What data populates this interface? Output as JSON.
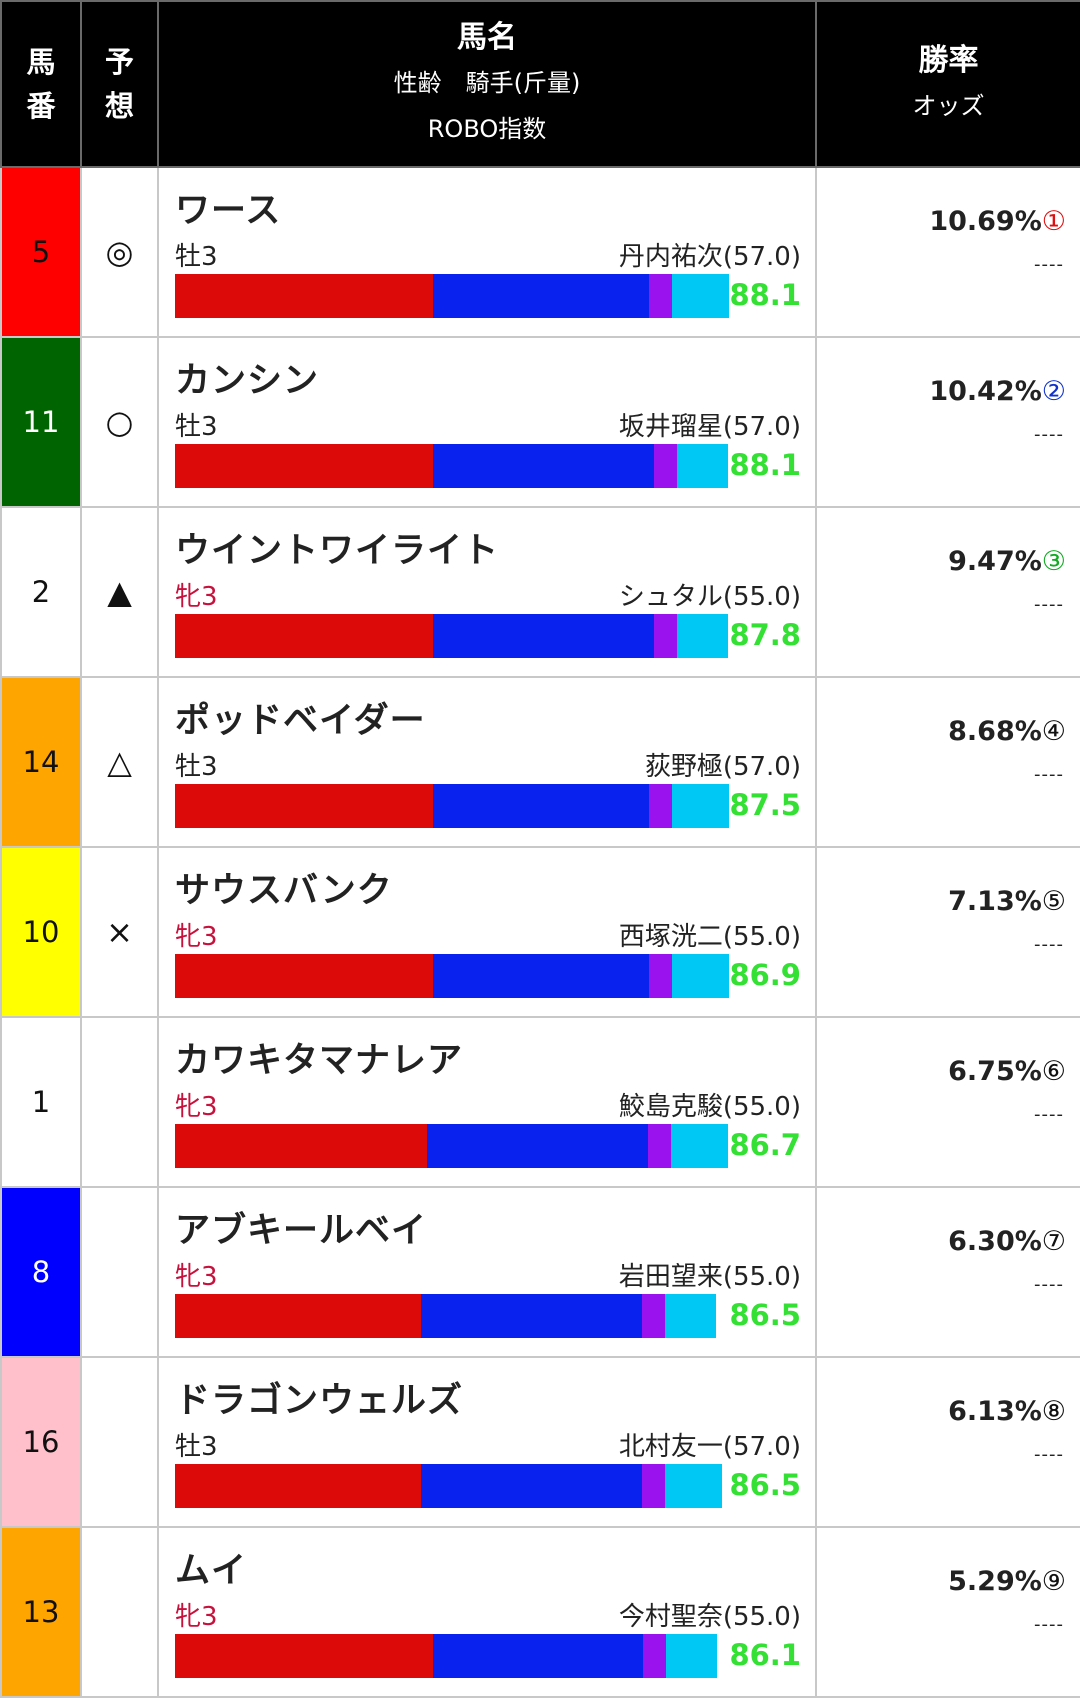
{
  "header": {
    "col_num": [
      "馬",
      "番"
    ],
    "col_pred": [
      "予",
      "想"
    ],
    "col_horse": {
      "name": "馬名",
      "sub1": "性齢　騎手(斤量)",
      "sub2": "ROBO指数"
    },
    "col_odds": {
      "rate": "勝率",
      "odds": "オッズ"
    }
  },
  "colors": {
    "segments": [
      "#dd0a0a",
      "#0a22ee",
      "#9a12ee",
      "#00c8f5"
    ],
    "index_text": "#33e033",
    "female_text": "#c8103c"
  },
  "rows": [
    {
      "num": "5",
      "num_bg": "#ff0000",
      "num_fg": "#111111",
      "mark": "◎",
      "name": "ワース",
      "sex": "牡3",
      "female": false,
      "jockey": "丹内祐次(57.0)",
      "segments": [
        0.469,
        0.392,
        0.041,
        0.103
      ],
      "index": "88.1",
      "rate": "10.69%",
      "rank": "①",
      "rank_color": "#dd1111",
      "odds": "----"
    },
    {
      "num": "11",
      "num_bg": "#006400",
      "num_fg": "#ffffff",
      "mark": "○",
      "name": "カンシン",
      "sex": "牡3",
      "female": false,
      "jockey": "坂井瑠星(57.0)",
      "segments": [
        0.469,
        0.402,
        0.041,
        0.093
      ],
      "index": "88.1",
      "rate": "10.42%",
      "rank": "②",
      "rank_color": "#1133cc",
      "odds": "----"
    },
    {
      "num": "2",
      "num_bg": "#ffffff",
      "num_fg": "#111111",
      "mark": "▲",
      "name": "ウイントワイライト",
      "sex": "牝3",
      "female": true,
      "jockey": "シュタル(55.0)",
      "segments": [
        0.469,
        0.402,
        0.041,
        0.093
      ],
      "index": "87.8",
      "rate": "9.47%",
      "rank": "③",
      "rank_color": "#11aa22",
      "odds": "----"
    },
    {
      "num": "14",
      "num_bg": "#ffa500",
      "num_fg": "#111111",
      "mark": "△",
      "name": "ポッドベイダー",
      "sex": "牡3",
      "female": false,
      "jockey": "荻野極(57.0)",
      "segments": [
        0.469,
        0.392,
        0.041,
        0.103
      ],
      "index": "87.5",
      "rate": "8.68%",
      "rank": "④",
      "rank_color": "#111111",
      "odds": "----"
    },
    {
      "num": "10",
      "num_bg": "#ffff00",
      "num_fg": "#111111",
      "mark": "×",
      "name": "サウスバンク",
      "sex": "牝3",
      "female": true,
      "jockey": "西塚洸二(55.0)",
      "segments": [
        0.469,
        0.392,
        0.041,
        0.103
      ],
      "index": "86.9",
      "rate": "7.13%",
      "rank": "⑤",
      "rank_color": "#111111",
      "odds": "----"
    },
    {
      "num": "1",
      "num_bg": "#ffffff",
      "num_fg": "#111111",
      "mark": "",
      "name": "カワキタマナレア",
      "sex": "牝3",
      "female": true,
      "jockey": "鮫島克駿(55.0)",
      "segments": [
        0.459,
        0.402,
        0.041,
        0.103
      ],
      "index": "86.7",
      "rate": "6.75%",
      "rank": "⑥",
      "rank_color": "#111111",
      "odds": "----"
    },
    {
      "num": "8",
      "num_bg": "#0000ff",
      "num_fg": "#ffffff",
      "mark": "",
      "name": "アブキールベイ",
      "sex": "牝3",
      "female": true,
      "jockey": "岩田望来(55.0)",
      "segments": [
        0.448,
        0.402,
        0.041,
        0.093
      ],
      "index": "86.5",
      "rate": "6.30%",
      "rank": "⑦",
      "rank_color": "#111111",
      "odds": "----"
    },
    {
      "num": "16",
      "num_bg": "#ffc0cb",
      "num_fg": "#111111",
      "mark": "",
      "name": "ドラゴンウェルズ",
      "sex": "牡3",
      "female": false,
      "jockey": "北村友一(57.0)",
      "segments": [
        0.448,
        0.402,
        0.041,
        0.103
      ],
      "index": "86.5",
      "rate": "6.13%",
      "rank": "⑧",
      "rank_color": "#111111",
      "odds": "----"
    },
    {
      "num": "13",
      "num_bg": "#ffa500",
      "num_fg": "#111111",
      "mark": "",
      "name": "ムイ",
      "sex": "牝3",
      "female": true,
      "jockey": "今村聖奈(55.0)",
      "segments": [
        0.469,
        0.382,
        0.041,
        0.093
      ],
      "index": "86.1",
      "rate": "5.29%",
      "rank": "⑨",
      "rank_color": "#111111",
      "odds": "----"
    }
  ]
}
